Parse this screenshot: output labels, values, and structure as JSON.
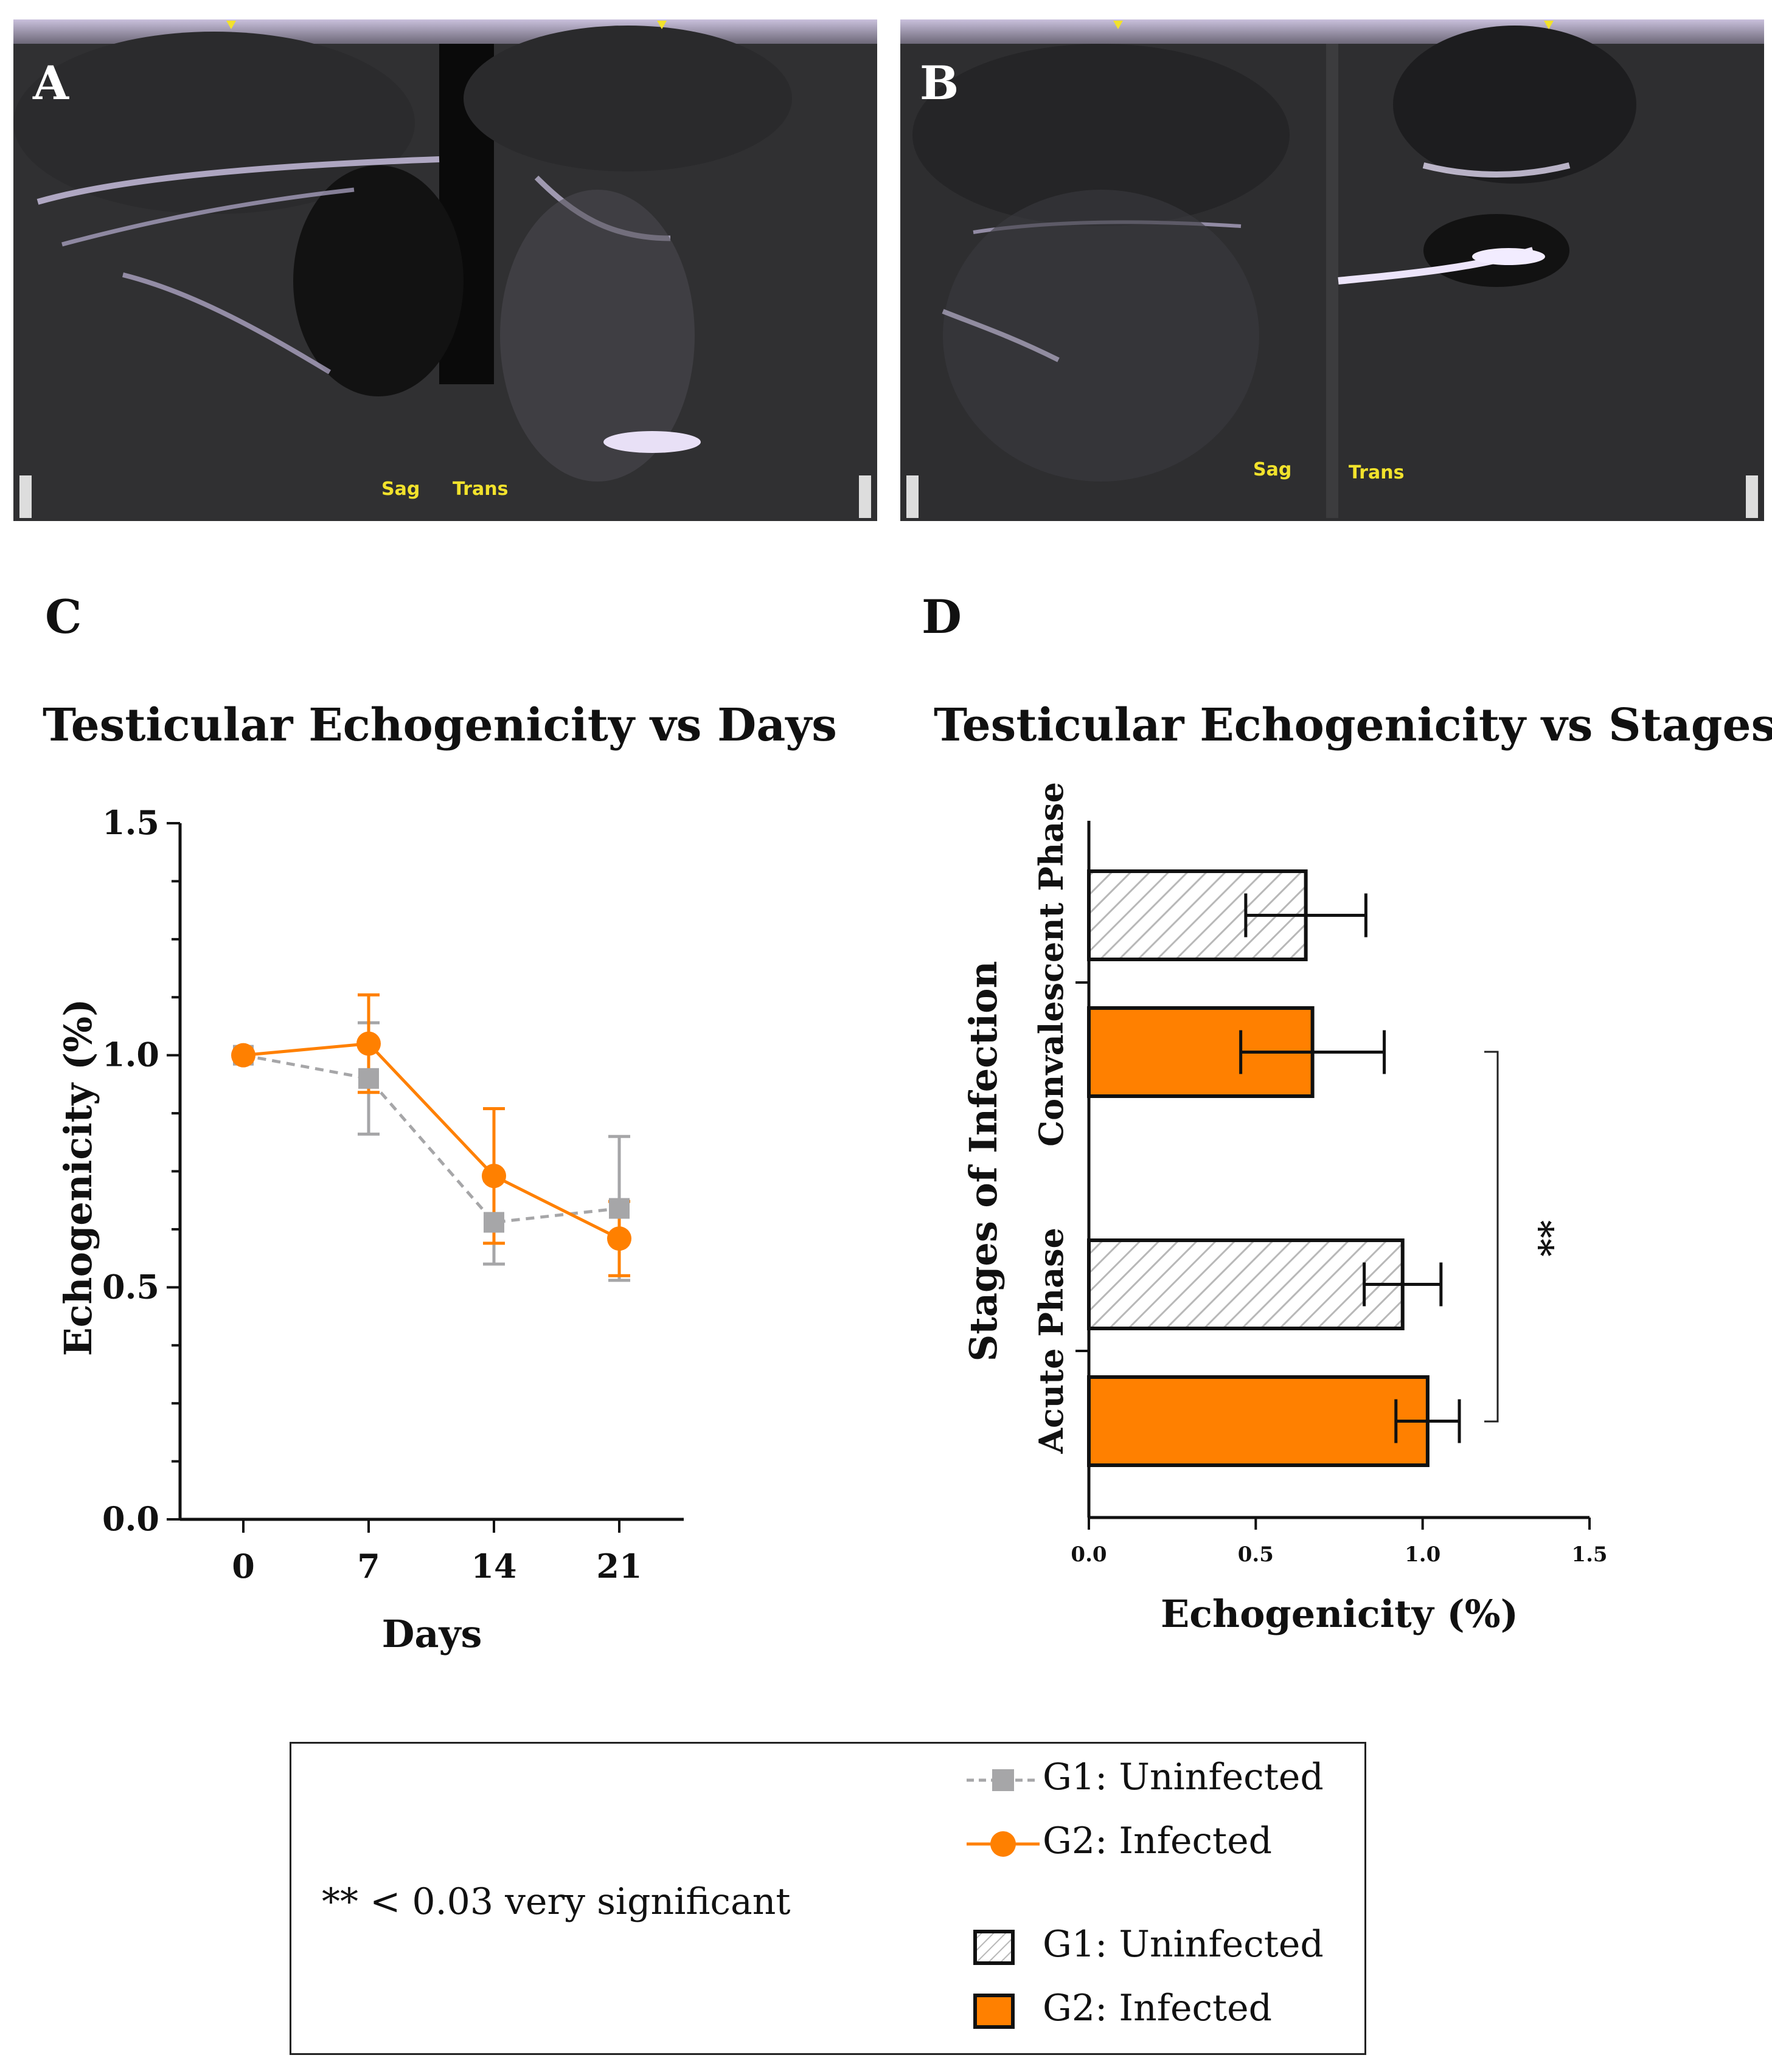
{
  "panels": {
    "a": {
      "letter": "A",
      "label_sag": "Sag",
      "label_trans": "Trans"
    },
    "b": {
      "letter": "B",
      "label_sag": "Sag",
      "label_trans": "Trans"
    }
  },
  "chart_data": [
    {
      "id": "C",
      "letter": "C",
      "type": "line",
      "title": "Testicular Echogenicity vs Days",
      "xlabel": "Days",
      "ylabel": "Echogenicity (%)",
      "categories": [
        "0",
        "7",
        "14",
        "21"
      ],
      "ylim": [
        0.0,
        1.5
      ],
      "yticks": [
        "0.0",
        "0.5",
        "1.0",
        "1.5"
      ],
      "series": [
        {
          "name": "G1: Uninfected",
          "color": "#a6a6a8",
          "marker": "square",
          "line": "dashed",
          "values": [
            1.0,
            0.95,
            0.64,
            0.67
          ],
          "err": [
            0.0,
            0.12,
            0.09,
            0.155
          ]
        },
        {
          "name": "G2: Infected",
          "color": "#ff8000",
          "marker": "circle",
          "line": "solid",
          "values": [
            1.0,
            1.025,
            0.74,
            0.605
          ],
          "err": [
            0.0,
            0.105,
            0.145,
            0.08
          ]
        }
      ]
    },
    {
      "id": "D",
      "letter": "D",
      "type": "bar",
      "orientation": "horizontal",
      "title": "Testicular Echogenicity vs Stages",
      "xlabel": "Echogenicity (%)",
      "ylabel": "Stages of Infection",
      "categories": [
        "Convalescent Phase",
        "Acute Phase"
      ],
      "xlim": [
        0.0,
        1.5
      ],
      "xticks": [
        "0.0",
        "0.5",
        "1.0",
        "1.5"
      ],
      "series": [
        {
          "name": "G1: Uninfected",
          "fill": "hatch",
          "values": [
            0.65,
            0.94
          ],
          "err": [
            0.18,
            0.115
          ]
        },
        {
          "name": "G2: Infected",
          "fill": "#ff8000",
          "values": [
            0.67,
            1.015
          ],
          "err": [
            0.215,
            0.095
          ]
        }
      ],
      "annotation": "**"
    }
  ],
  "legend": {
    "line_items": [
      {
        "label": "G1: Uninfected",
        "color": "#a6a6a8"
      },
      {
        "label": "G2: Infected",
        "color": "#ff8000"
      }
    ],
    "bar_items": [
      {
        "label": "G1: Uninfected"
      },
      {
        "label": "G2: Infected",
        "color": "#ff8000"
      }
    ],
    "significance_note": "** < 0.03  very significant"
  }
}
